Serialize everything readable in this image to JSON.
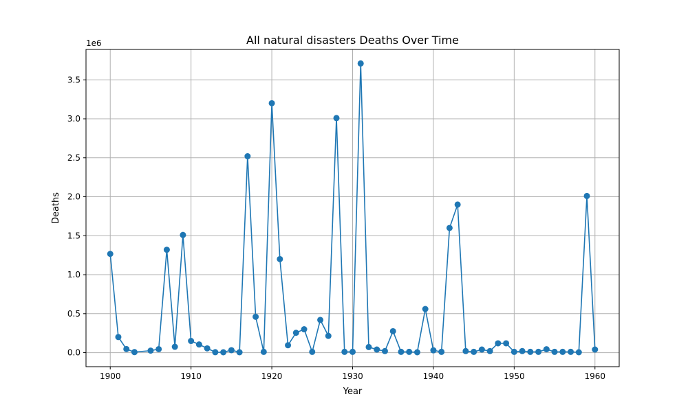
{
  "chart_data": {
    "type": "line",
    "title": "All natural disasters Deaths Over Time",
    "xlabel": "Year",
    "ylabel": "Deaths",
    "y_scale_label": "1e6",
    "xlim": [
      1897,
      1963
    ],
    "ylim": [
      -180000,
      3890000
    ],
    "xticks": [
      1900,
      1910,
      1920,
      1930,
      1940,
      1950,
      1960
    ],
    "yticks": [
      0,
      500000,
      1000000,
      1500000,
      2000000,
      2500000,
      3000000,
      3500000
    ],
    "ytick_labels": [
      "0.0",
      "0.5",
      "1.0",
      "1.5",
      "2.0",
      "2.5",
      "3.0",
      "3.5"
    ],
    "grid": true,
    "marker": "circle",
    "colors": {
      "series": "#1f77b4",
      "grid": "#b0b0b0",
      "axes": "#000000"
    },
    "series": [
      {
        "x": [
          1900,
          1901,
          1902,
          1903,
          1905,
          1906,
          1907,
          1908,
          1909,
          1910,
          1911,
          1912,
          1913,
          1914,
          1915,
          1916,
          1917,
          1918,
          1919,
          1920,
          1921,
          1922,
          1923,
          1924,
          1925,
          1926,
          1927,
          1928,
          1929,
          1930,
          1931,
          1932,
          1933,
          1934,
          1935,
          1936,
          1937,
          1938,
          1939,
          1940,
          1941,
          1942,
          1943,
          1944,
          1945,
          1946,
          1947,
          1948,
          1949,
          1950,
          1951,
          1952,
          1953,
          1954,
          1955,
          1956,
          1957,
          1958,
          1959,
          1960
        ],
        "y": [
          1267000,
          200000,
          46000,
          7000,
          26000,
          45000,
          1320000,
          75000,
          1510000,
          150000,
          105000,
          55000,
          6000,
          5000,
          32000,
          5000,
          2520000,
          460000,
          10000,
          3200000,
          1200000,
          95000,
          255000,
          300000,
          10000,
          420000,
          215000,
          3010000,
          10000,
          10000,
          3710000,
          72000,
          40000,
          20000,
          275000,
          10000,
          10000,
          5000,
          560000,
          30000,
          10000,
          1600000,
          1900000,
          20000,
          10000,
          40000,
          20000,
          120000,
          120000,
          10000,
          20000,
          10000,
          10000,
          44000,
          10000,
          10000,
          10000,
          5000,
          2010000,
          40000
        ]
      }
    ]
  }
}
